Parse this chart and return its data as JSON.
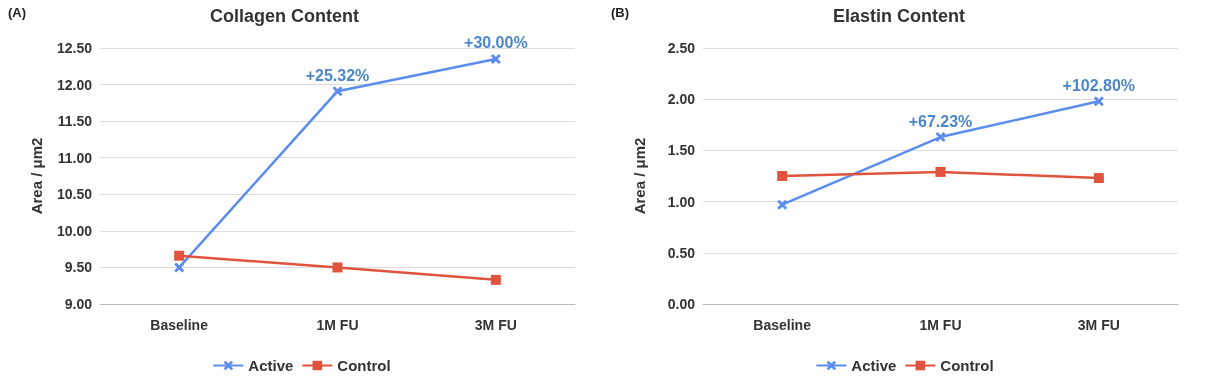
{
  "chart_data": [
    {
      "type": "line",
      "title": "Collagen Content",
      "ylabel": "Area / μm2",
      "categories": [
        "Baseline",
        "1M FU",
        "3M FU"
      ],
      "series": [
        {
          "name": "Active",
          "color": "#5b8def",
          "marker": "cross",
          "values": [
            9.5,
            11.91,
            12.35
          ]
        },
        {
          "name": "Control",
          "color": "#e0533c",
          "marker": "square",
          "values": [
            9.66,
            9.5,
            9.33
          ]
        }
      ],
      "ylim": [
        9,
        12.5
      ],
      "yticks": [
        {
          "value": 9,
          "label": "9.00"
        },
        {
          "value": 9.5,
          "label": "9.50"
        },
        {
          "value": 10,
          "label": "10.00"
        },
        {
          "value": 10.5,
          "label": "10.50"
        },
        {
          "value": 11,
          "label": "11.00"
        },
        {
          "value": 11.5,
          "label": "11.50"
        },
        {
          "value": 12,
          "label": "12.00"
        },
        {
          "value": 12.5,
          "label": "12.50"
        }
      ],
      "grid": "y",
      "legend": "bottom",
      "annotations": [
        "(A)",
        {
          "text": "+25.32%",
          "x": "1M FU",
          "y": 11.91
        },
        {
          "text": "+30.00%",
          "x": "3M FU",
          "y": 12.35
        }
      ]
    },
    {
      "type": "line",
      "title": "Elastin Content",
      "ylabel": "Area / μm2",
      "categories": [
        "Baseline",
        "1M FU",
        "3M FU"
      ],
      "series": [
        {
          "name": "Active",
          "color": "#5b8def",
          "marker": "cross",
          "values": [
            0.97,
            1.63,
            1.98
          ]
        },
        {
          "name": "Control",
          "color": "#e0533c",
          "marker": "square",
          "values": [
            1.25,
            1.29,
            1.23
          ]
        }
      ],
      "ylim": [
        0,
        2.5
      ],
      "yticks": [
        {
          "value": 0,
          "label": "0.00"
        },
        {
          "value": 0.5,
          "label": "0.50"
        },
        {
          "value": 1,
          "label": "1.00"
        },
        {
          "value": 1.5,
          "label": "1.50"
        },
        {
          "value": 2,
          "label": "2.00"
        },
        {
          "value": 2.5,
          "label": "2.50"
        }
      ],
      "grid": "y",
      "legend": "bottom",
      "annotations": [
        "(B)",
        {
          "text": "+67.23%",
          "x": "1M FU",
          "y": 1.63
        },
        {
          "text": "+102.80%",
          "x": "3M FU",
          "y": 1.98
        }
      ]
    }
  ]
}
